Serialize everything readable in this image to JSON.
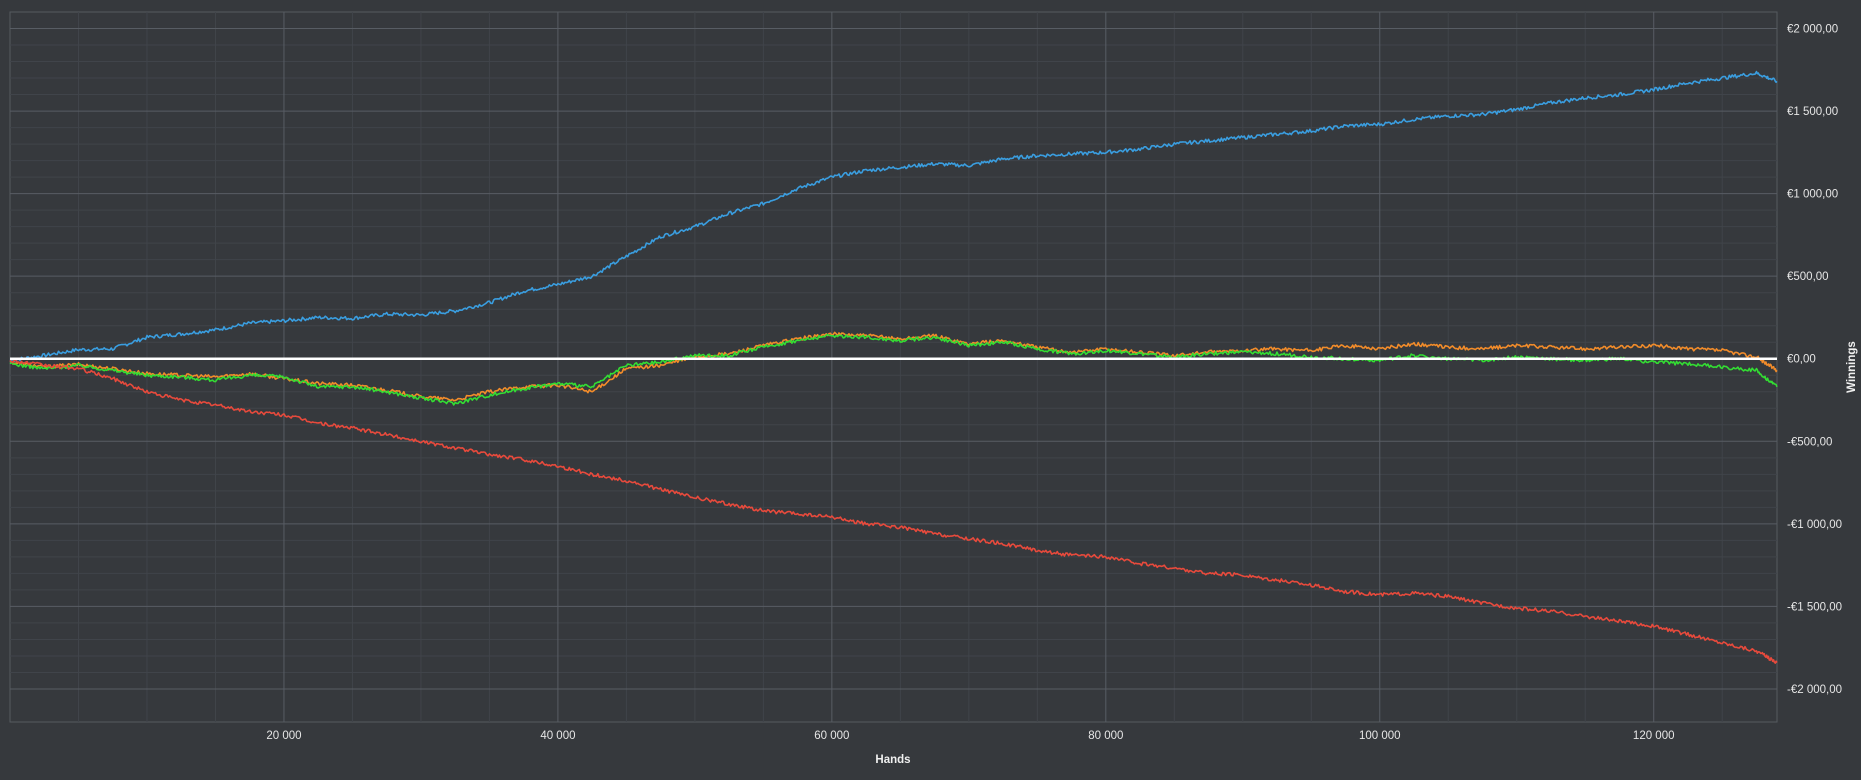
{
  "chart_data": {
    "type": "line",
    "xlabel": "Hands",
    "ylabel": "Winnings",
    "xlim": [
      0,
      129000
    ],
    "ylim": [
      -2200,
      2100
    ],
    "x_ticks": [
      20000,
      40000,
      60000,
      80000,
      100000,
      120000
    ],
    "x_tick_labels": [
      "20 000",
      "40 000",
      "60 000",
      "80 000",
      "100 000",
      "120 000"
    ],
    "y_ticks": [
      2000,
      1500,
      1000,
      500,
      0,
      -500,
      -1000,
      -1500,
      -2000
    ],
    "y_tick_labels": [
      "€2 000,00",
      "€1 500,00",
      "€1 000,00",
      "€500,00",
      "€0,00",
      "-€500,00",
      "-€1 000,00",
      "-€1 500,00",
      "-€2 000,00"
    ],
    "grid": true,
    "background": "#36393d",
    "series": [
      {
        "color": "#3a9ee0",
        "x": [
          0,
          2500,
          5000,
          7500,
          10000,
          12500,
          15000,
          17500,
          20000,
          22500,
          25000,
          27500,
          30000,
          32500,
          35000,
          37500,
          40000,
          42500,
          45000,
          47500,
          50000,
          52500,
          55000,
          57500,
          60000,
          62500,
          65000,
          67500,
          70000,
          72500,
          75000,
          77500,
          80000,
          82500,
          85000,
          87500,
          90000,
          92500,
          95000,
          97500,
          100000,
          102500,
          105000,
          107500,
          110000,
          112500,
          115000,
          117500,
          120000,
          122500,
          125000,
          127500,
          129000
        ],
        "y": [
          -10,
          20,
          55,
          60,
          130,
          150,
          175,
          215,
          230,
          250,
          245,
          270,
          265,
          290,
          340,
          410,
          450,
          500,
          620,
          740,
          800,
          880,
          940,
          1030,
          1100,
          1140,
          1160,
          1180,
          1170,
          1210,
          1230,
          1240,
          1250,
          1270,
          1300,
          1320,
          1340,
          1360,
          1380,
          1410,
          1420,
          1450,
          1470,
          1480,
          1510,
          1550,
          1580,
          1600,
          1630,
          1670,
          1700,
          1730,
          1680
        ]
      },
      {
        "color": "#f28c2a",
        "x": [
          0,
          2500,
          5000,
          7500,
          10000,
          12500,
          15000,
          17500,
          20000,
          22500,
          25000,
          27500,
          30000,
          32500,
          35000,
          37500,
          40000,
          42500,
          45000,
          47500,
          50000,
          52500,
          55000,
          57500,
          60000,
          62500,
          65000,
          67500,
          70000,
          72500,
          75000,
          77500,
          80000,
          82500,
          85000,
          87500,
          90000,
          92500,
          95000,
          97500,
          100000,
          102500,
          105000,
          107500,
          110000,
          112500,
          115000,
          117500,
          120000,
          122500,
          125000,
          127500,
          129000
        ],
        "y": [
          -20,
          -50,
          -35,
          -60,
          -90,
          -100,
          -110,
          -90,
          -120,
          -150,
          -160,
          -190,
          -230,
          -250,
          -200,
          -170,
          -160,
          -200,
          -60,
          -40,
          10,
          30,
          80,
          120,
          150,
          140,
          120,
          140,
          90,
          110,
          70,
          40,
          60,
          40,
          20,
          40,
          50,
          60,
          50,
          80,
          60,
          90,
          70,
          60,
          80,
          70,
          60,
          70,
          80,
          60,
          50,
          10,
          -70
        ]
      },
      {
        "color": "#33dd33",
        "x": [
          0,
          2500,
          5000,
          7500,
          10000,
          12500,
          15000,
          17500,
          20000,
          22500,
          25000,
          27500,
          30000,
          32500,
          35000,
          37500,
          40000,
          42500,
          45000,
          47500,
          50000,
          52500,
          55000,
          57500,
          60000,
          62500,
          65000,
          67500,
          70000,
          72500,
          75000,
          77500,
          80000,
          82500,
          85000,
          87500,
          90000,
          92500,
          95000,
          97500,
          100000,
          102500,
          105000,
          107500,
          110000,
          112500,
          115000,
          117500,
          120000,
          122500,
          125000,
          127500,
          129000
        ],
        "y": [
          -30,
          -60,
          -40,
          -70,
          -100,
          -110,
          -130,
          -100,
          -110,
          -170,
          -170,
          -200,
          -240,
          -270,
          -220,
          -180,
          -150,
          -170,
          -40,
          -20,
          20,
          20,
          70,
          110,
          140,
          130,
          110,
          130,
          80,
          100,
          60,
          30,
          50,
          30,
          10,
          30,
          40,
          30,
          10,
          0,
          -10,
          20,
          0,
          -10,
          10,
          0,
          -10,
          0,
          -20,
          -30,
          -50,
          -70,
          -170
        ]
      },
      {
        "color": "#e84a3c",
        "x": [
          0,
          2500,
          5000,
          7500,
          10000,
          12500,
          15000,
          17500,
          20000,
          22500,
          25000,
          27500,
          30000,
          32500,
          35000,
          37500,
          40000,
          42500,
          45000,
          47500,
          50000,
          52500,
          55000,
          57500,
          60000,
          62500,
          65000,
          67500,
          70000,
          72500,
          75000,
          77500,
          80000,
          82500,
          85000,
          87500,
          90000,
          92500,
          95000,
          97500,
          100000,
          102500,
          105000,
          107500,
          110000,
          112500,
          115000,
          117500,
          120000,
          122500,
          125000,
          127500,
          129000
        ],
        "y": [
          -10,
          -40,
          -60,
          -120,
          -200,
          -250,
          -280,
          -320,
          -340,
          -390,
          -420,
          -460,
          -500,
          -540,
          -580,
          -610,
          -650,
          -700,
          -740,
          -790,
          -840,
          -880,
          -920,
          -940,
          -960,
          -1000,
          -1020,
          -1060,
          -1090,
          -1120,
          -1160,
          -1190,
          -1200,
          -1240,
          -1270,
          -1300,
          -1310,
          -1340,
          -1370,
          -1410,
          -1430,
          -1420,
          -1440,
          -1480,
          -1510,
          -1530,
          -1560,
          -1590,
          -1620,
          -1670,
          -1720,
          -1770,
          -1840
        ]
      }
    ],
    "zero_line_color": "#ffffff"
  }
}
